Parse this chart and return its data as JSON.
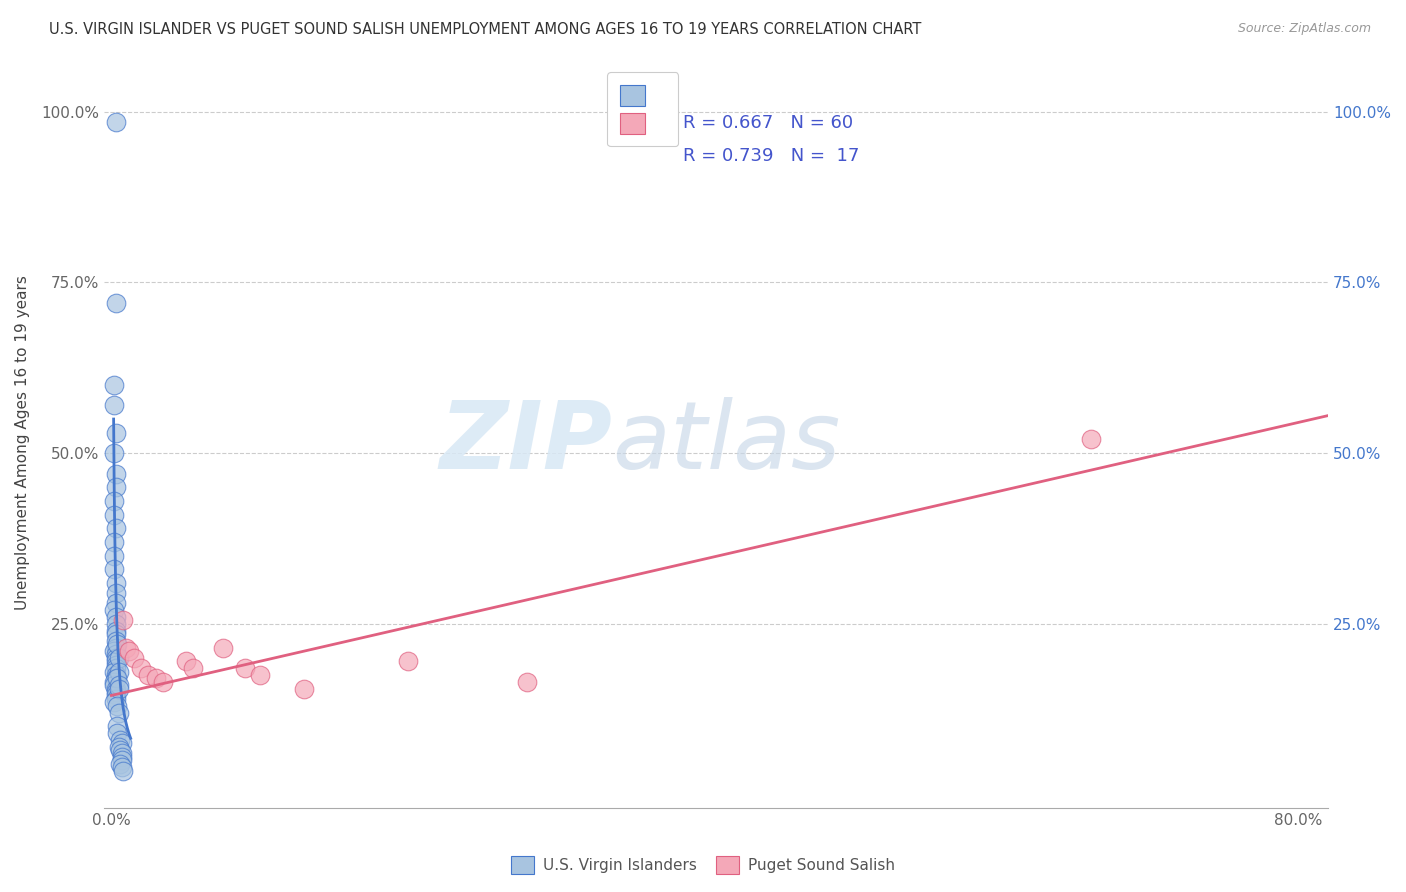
{
  "title": "U.S. VIRGIN ISLANDER VS PUGET SOUND SALISH UNEMPLOYMENT AMONG AGES 16 TO 19 YEARS CORRELATION CHART",
  "source": "Source: ZipAtlas.com",
  "ylabel": "Unemployment Among Ages 16 to 19 years",
  "xlim": [
    -0.005,
    0.82
  ],
  "ylim": [
    -0.02,
    1.05
  ],
  "xticks": [
    0.0,
    0.2,
    0.4,
    0.6,
    0.8
  ],
  "xtick_labels": [
    "0.0%",
    "",
    "",
    "",
    "80.0%"
  ],
  "yticks": [
    0.0,
    0.25,
    0.5,
    0.75,
    1.0
  ],
  "ytick_labels_left": [
    "",
    "25.0%",
    "50.0%",
    "75.0%",
    "100.0%"
  ],
  "ytick_labels_right": [
    "",
    "25.0%",
    "50.0%",
    "75.0%",
    "100.0%"
  ],
  "blue_color": "#A8C4E0",
  "pink_color": "#F4A8B8",
  "blue_line_color": "#4477CC",
  "pink_line_color": "#E06080",
  "blue_scatter_x": [
    0.003,
    0.003,
    0.002,
    0.002,
    0.003,
    0.002,
    0.003,
    0.003,
    0.002,
    0.002,
    0.003,
    0.002,
    0.002,
    0.002,
    0.003,
    0.003,
    0.003,
    0.002,
    0.003,
    0.003,
    0.003,
    0.003,
    0.003,
    0.003,
    0.002,
    0.003,
    0.003,
    0.003,
    0.003,
    0.003,
    0.002,
    0.003,
    0.003,
    0.002,
    0.002,
    0.003,
    0.003,
    0.003,
    0.003,
    0.002,
    0.004,
    0.005,
    0.005,
    0.004,
    0.005,
    0.005,
    0.004,
    0.005,
    0.004,
    0.004,
    0.006,
    0.007,
    0.005,
    0.006,
    0.007,
    0.007,
    0.007,
    0.006,
    0.007,
    0.008
  ],
  "blue_scatter_y": [
    0.985,
    0.72,
    0.6,
    0.57,
    0.53,
    0.5,
    0.47,
    0.45,
    0.43,
    0.41,
    0.39,
    0.37,
    0.35,
    0.33,
    0.31,
    0.295,
    0.28,
    0.27,
    0.26,
    0.25,
    0.24,
    0.235,
    0.225,
    0.215,
    0.21,
    0.205,
    0.2,
    0.195,
    0.19,
    0.185,
    0.18,
    0.175,
    0.17,
    0.165,
    0.16,
    0.155,
    0.15,
    0.145,
    0.14,
    0.135,
    0.22,
    0.2,
    0.18,
    0.17,
    0.16,
    0.155,
    0.13,
    0.12,
    0.1,
    0.09,
    0.08,
    0.075,
    0.07,
    0.065,
    0.06,
    0.055,
    0.05,
    0.045,
    0.04,
    0.035
  ],
  "pink_scatter_x": [
    0.008,
    0.01,
    0.012,
    0.015,
    0.02,
    0.025,
    0.03,
    0.035,
    0.05,
    0.055,
    0.075,
    0.09,
    0.1,
    0.13,
    0.2,
    0.28,
    0.66
  ],
  "pink_scatter_y": [
    0.255,
    0.215,
    0.21,
    0.2,
    0.185,
    0.175,
    0.17,
    0.165,
    0.195,
    0.185,
    0.215,
    0.185,
    0.175,
    0.155,
    0.195,
    0.165,
    0.52
  ],
  "pink_trendline_x": [
    0.0,
    0.82
  ],
  "pink_trendline_y": [
    0.145,
    0.555
  ],
  "watermark_zip": "ZIP",
  "watermark_atlas": "atlas",
  "figsize": [
    14.06,
    8.92
  ],
  "dpi": 100
}
